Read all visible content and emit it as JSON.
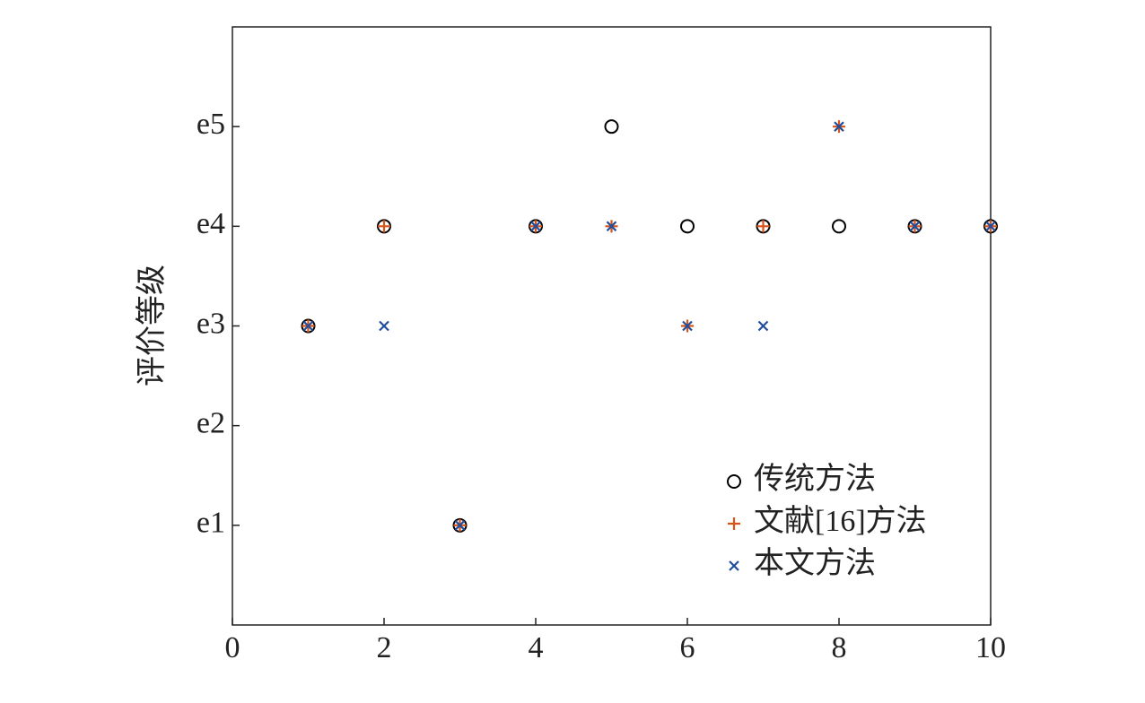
{
  "chart_data": {
    "type": "scatter",
    "ylabel": "评价等级",
    "x": [
      1,
      2,
      3,
      4,
      5,
      6,
      7,
      8,
      9,
      10
    ],
    "series": [
      {
        "name": "传统方法",
        "color": "#000000",
        "marker": "circle",
        "values": [
          3,
          4,
          1,
          4,
          5,
          4,
          4,
          4,
          4,
          4
        ]
      },
      {
        "name": "文献[16]方法",
        "color": "#d95319",
        "marker": "plus",
        "values": [
          3,
          4,
          1,
          4,
          4,
          3,
          4,
          5,
          4,
          4
        ]
      },
      {
        "name": "本文方法",
        "color": "#1f4e9c",
        "marker": "cross",
        "values": [
          3,
          3,
          1,
          4,
          4,
          3,
          3,
          5,
          4,
          4
        ]
      }
    ],
    "xlim": [
      0,
      10
    ],
    "xticks": [
      0,
      2,
      4,
      6,
      8,
      10
    ],
    "ylim": [
      0,
      6
    ],
    "yticks": [
      {
        "value": 1,
        "label": "e1"
      },
      {
        "value": 2,
        "label": "e2"
      },
      {
        "value": 3,
        "label": "e3"
      },
      {
        "value": 4,
        "label": "e4"
      },
      {
        "value": 5,
        "label": "e5"
      }
    ],
    "legend": "lower right",
    "grid": false
  }
}
